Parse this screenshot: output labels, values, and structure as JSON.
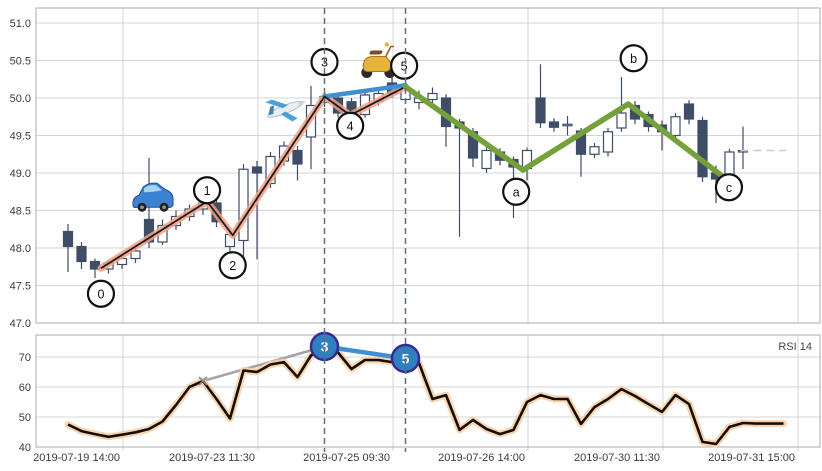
{
  "chart_data": {
    "type": "candlestick",
    "title": "",
    "x_axis_labels": [
      "2019-07-19 14:00",
      "2019-07-23 11:30",
      "2019-07-25 09:30",
      "2019-07-26 14:00",
      "2019-07-30 11:30",
      "2019-07-31 15:00"
    ],
    "price_axis_ticks": [
      "51.0",
      "50.5",
      "50.0",
      "49.5",
      "49.0",
      "48.5",
      "48.0",
      "47.5",
      "47.0"
    ],
    "price_axis_values": [
      51.0,
      50.5,
      50.0,
      49.5,
      49.0,
      48.5,
      48.0,
      47.5,
      47.0
    ],
    "rsi_axis_ticks": [
      "70",
      "60",
      "50",
      "40"
    ],
    "rsi_axis_values": [
      70,
      60,
      50,
      40
    ],
    "rsi_label": "RSI 14",
    "candles": [
      {
        "o": 48.22,
        "h": 48.32,
        "l": 47.68,
        "c": 48.02
      },
      {
        "o": 48.02,
        "h": 48.08,
        "l": 47.72,
        "c": 47.82
      },
      {
        "o": 47.82,
        "h": 47.86,
        "l": 47.6,
        "c": 47.72
      },
      {
        "o": 47.72,
        "h": 47.84,
        "l": 47.66,
        "c": 47.8
      },
      {
        "o": 47.78,
        "h": 47.9,
        "l": 47.72,
        "c": 47.86
      },
      {
        "o": 47.86,
        "h": 48.0,
        "l": 47.8,
        "c": 47.96
      },
      {
        "o": 48.38,
        "h": 49.2,
        "l": 48.0,
        "c": 48.08
      },
      {
        "o": 48.08,
        "h": 48.38,
        "l": 48.04,
        "c": 48.3
      },
      {
        "o": 48.3,
        "h": 48.5,
        "l": 48.24,
        "c": 48.42
      },
      {
        "o": 48.42,
        "h": 48.58,
        "l": 48.36,
        "c": 48.52
      },
      {
        "o": 48.52,
        "h": 48.68,
        "l": 48.44,
        "c": 48.6
      },
      {
        "o": 48.6,
        "h": 48.66,
        "l": 48.28,
        "c": 48.35
      },
      {
        "o": 48.02,
        "h": 48.22,
        "l": 47.8,
        "c": 48.18
      },
      {
        "o": 48.1,
        "h": 49.12,
        "l": 47.76,
        "c": 49.05
      },
      {
        "o": 49.08,
        "h": 49.16,
        "l": 47.85,
        "c": 49.0
      },
      {
        "o": 48.86,
        "h": 49.28,
        "l": 48.8,
        "c": 49.22
      },
      {
        "o": 49.16,
        "h": 49.42,
        "l": 49.1,
        "c": 49.36
      },
      {
        "o": 49.3,
        "h": 49.36,
        "l": 48.9,
        "c": 49.12
      },
      {
        "o": 49.48,
        "h": 50.16,
        "l": 49.05,
        "c": 49.9
      },
      {
        "o": 49.94,
        "h": 50.08,
        "l": 49.88,
        "c": 50.02
      },
      {
        "o": 50.0,
        "h": 50.06,
        "l": 49.74,
        "c": 49.8
      },
      {
        "o": 49.95,
        "h": 50.0,
        "l": 49.7,
        "c": 49.78
      },
      {
        "o": 49.78,
        "h": 50.1,
        "l": 49.74,
        "c": 50.04
      },
      {
        "o": 49.96,
        "h": 50.12,
        "l": 49.9,
        "c": 50.06
      },
      {
        "o": 50.2,
        "h": 50.4,
        "l": 50.0,
        "c": 50.06
      },
      {
        "o": 49.98,
        "h": 50.2,
        "l": 49.92,
        "c": 50.14
      },
      {
        "o": 49.94,
        "h": 50.1,
        "l": 49.85,
        "c": 50.0
      },
      {
        "o": 49.98,
        "h": 50.14,
        "l": 49.9,
        "c": 50.06
      },
      {
        "o": 50.0,
        "h": 50.05,
        "l": 49.35,
        "c": 49.62
      },
      {
        "o": 49.68,
        "h": 49.72,
        "l": 48.15,
        "c": 49.6
      },
      {
        "o": 49.55,
        "h": 49.6,
        "l": 49.08,
        "c": 49.2
      },
      {
        "o": 49.06,
        "h": 49.35,
        "l": 49.0,
        "c": 49.3
      },
      {
        "o": 49.28,
        "h": 49.33,
        "l": 49.1,
        "c": 49.17
      },
      {
        "o": 49.18,
        "h": 49.22,
        "l": 48.4,
        "c": 49.08
      },
      {
        "o": 49.06,
        "h": 49.34,
        "l": 48.9,
        "c": 49.3
      },
      {
        "o": 50.0,
        "h": 50.45,
        "l": 49.6,
        "c": 49.67
      },
      {
        "o": 49.68,
        "h": 49.73,
        "l": 49.55,
        "c": 49.61
      },
      {
        "o": 49.63,
        "h": 49.76,
        "l": 49.5,
        "c": 49.65
      },
      {
        "o": 49.56,
        "h": 49.6,
        "l": 48.95,
        "c": 49.25
      },
      {
        "o": 49.25,
        "h": 49.4,
        "l": 49.2,
        "c": 49.35
      },
      {
        "o": 49.28,
        "h": 49.6,
        "l": 49.22,
        "c": 49.55
      },
      {
        "o": 49.6,
        "h": 50.28,
        "l": 49.55,
        "c": 49.8
      },
      {
        "o": 49.9,
        "h": 49.96,
        "l": 49.65,
        "c": 49.72
      },
      {
        "o": 49.78,
        "h": 49.82,
        "l": 49.55,
        "c": 49.62
      },
      {
        "o": 49.64,
        "h": 49.7,
        "l": 49.3,
        "c": 49.55
      },
      {
        "o": 49.5,
        "h": 49.8,
        "l": 49.45,
        "c": 49.75
      },
      {
        "o": 49.92,
        "h": 49.97,
        "l": 49.65,
        "c": 49.72
      },
      {
        "o": 49.7,
        "h": 49.75,
        "l": 48.88,
        "c": 48.95
      },
      {
        "o": 49.0,
        "h": 49.1,
        "l": 48.6,
        "c": 48.92
      },
      {
        "o": 48.96,
        "h": 49.32,
        "l": 48.84,
        "c": 49.28
      },
      {
        "o": 49.28,
        "h": 49.62,
        "l": 49.05,
        "c": 49.3
      }
    ],
    "rsi_values": [
      47.5,
      45.3,
      44.3,
      43.4,
      44.1,
      44.9,
      46.0,
      48.5,
      54.0,
      60.0,
      62.0,
      56.0,
      49.5,
      65.5,
      65.0,
      67.5,
      68.3,
      63.3,
      70.5,
      73.5,
      71.5,
      66.0,
      69.0,
      69.0,
      68.3,
      69.5,
      68.0,
      56.0,
      57.3,
      45.7,
      49.0,
      46.0,
      44.3,
      45.7,
      55.0,
      57.3,
      56.0,
      56.0,
      47.7,
      53.3,
      56.0,
      59.3,
      57.0,
      54.3,
      51.7,
      57.3,
      54.3,
      41.7,
      41.0,
      46.7,
      48.0
    ],
    "rsi_tail_values": [
      47.8,
      47.8,
      47.8
    ],
    "overlays": {
      "impulse_line": {
        "color_core": "#1a1a1a",
        "color_glow": "#f2a085",
        "points": [
          [
            2.44,
            47.73
          ],
          [
            10.3,
            48.62
          ],
          [
            12.2,
            48.17
          ],
          [
            19.0,
            50.02
          ],
          [
            20.9,
            49.77
          ],
          [
            25.0,
            50.15
          ]
        ]
      },
      "blue_line_price": {
        "color": "#3f8fd2",
        "points": [
          [
            19.0,
            50.02
          ],
          [
            25.0,
            50.17
          ]
        ]
      },
      "green_line": {
        "color": "#74a13c",
        "points": [
          [
            25.0,
            50.15
          ],
          [
            33.7,
            49.04
          ],
          [
            41.5,
            49.92
          ],
          [
            48.6,
            48.94
          ]
        ]
      },
      "last_price_dash": {
        "price": 49.3,
        "i_start": 49.8,
        "i_end": 53.2,
        "color": "#cccccc"
      },
      "rsi_gray_line": {
        "color": "#a3a3a3",
        "points_iv": [
          [
            10.0,
            62.0
          ],
          [
            19.0,
            73.5
          ]
        ]
      },
      "rsi_blue_connector": {
        "color": "#3f8fd2",
        "points_iv": [
          [
            19.0,
            73.5
          ],
          [
            25.0,
            69.5
          ]
        ]
      },
      "rsi_cross_marker": {
        "i": 10.0,
        "value": 62.0,
        "color": "#8a8a8a"
      }
    },
    "annotations": {
      "dashed_vlines_i": [
        19.0,
        25.0
      ],
      "price_circles": [
        {
          "label": "0",
          "i": 2.44,
          "price": 47.39
        },
        {
          "label": "1",
          "i": 10.3,
          "price": 48.77
        },
        {
          "label": "2",
          "i": 12.2,
          "price": 47.77
        },
        {
          "label": "3",
          "i": 19.0,
          "price": 50.48
        },
        {
          "label": "4",
          "i": 20.9,
          "price": 49.63
        },
        {
          "label": "5",
          "i": 24.9,
          "price": 50.43
        },
        {
          "label": "a",
          "i": 33.2,
          "price": 48.75
        },
        {
          "label": "b",
          "i": 41.9,
          "price": 50.53
        },
        {
          "label": "c",
          "i": 48.96,
          "price": 48.81
        }
      ],
      "rsi_circles": [
        {
          "label": "3",
          "i": 19.0,
          "value": 73.5
        },
        {
          "label": "5",
          "i": 25.0,
          "value": 69.5
        }
      ],
      "emojis": [
        {
          "name": "car",
          "i": 6.3,
          "price": 48.65
        },
        {
          "name": "airplane",
          "i": 16.1,
          "price": 49.85
        },
        {
          "name": "scooter",
          "i": 22.95,
          "price": 50.5
        }
      ]
    },
    "colors": {
      "candle": "#3f4d66",
      "grid": "#d4d4d4",
      "border": "#ababab",
      "axis_text": "#3c3c3c",
      "vline_dash": "#5f7080",
      "rsi_core": "#140d08",
      "rsi_glow": "#f8cfa8",
      "circle_fill_rsi": "#2f7fc1",
      "circle_stroke_rsi": "#342d8c"
    }
  }
}
